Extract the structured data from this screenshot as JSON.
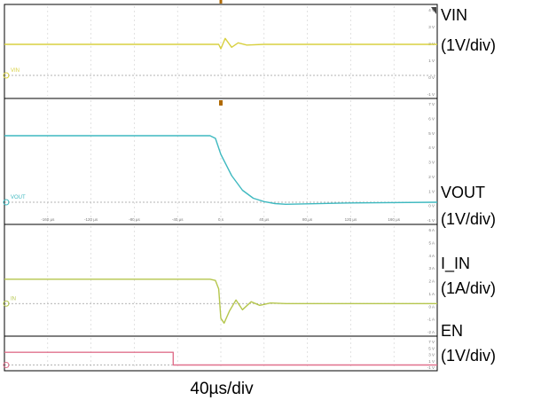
{
  "chart_data": [
    {
      "type": "line",
      "title": "",
      "xlabel": "40µs/div",
      "x_range_us": [
        -200,
        200
      ],
      "panels": [
        {
          "id": "vin",
          "name": "VIN",
          "scale": "(1V/div)",
          "channel_tag": "VIN",
          "color": "#d8d040",
          "y_ticks": [
            "4 V",
            "3 V",
            "2 V",
            "1 V",
            "0 V",
            "-1 V"
          ],
          "points": [
            [
              -200,
              2.1
            ],
            [
              -5,
              2.1
            ],
            [
              -2,
              2.1
            ],
            [
              0,
              1.8
            ],
            [
              4,
              2.5
            ],
            [
              10,
              1.9
            ],
            [
              16,
              2.2
            ],
            [
              24,
              2.05
            ],
            [
              40,
              2.1
            ],
            [
              200,
              2.1
            ]
          ]
        },
        {
          "id": "vout",
          "name": "VOUT",
          "scale": "(1V/div)",
          "channel_tag": "VOUT",
          "color": "#3fb9c0",
          "y_ticks": [
            "7 V",
            "6 V",
            "5 V",
            "4 V",
            "3 V",
            "2 V",
            "1 V",
            "0 V",
            "-1 V"
          ],
          "x_tick_labels": [
            "-160 µs",
            "-120 µs",
            "-80 µs",
            "-40 µs",
            "0 s",
            "40 µs",
            "80 µs",
            "120 µs",
            "160 µs"
          ],
          "points": [
            [
              -200,
              5
            ],
            [
              -10,
              5
            ],
            [
              -5,
              4.8
            ],
            [
              0,
              3.6
            ],
            [
              10,
              2.0
            ],
            [
              20,
              0.9
            ],
            [
              30,
              0.3
            ],
            [
              40,
              0.05
            ],
            [
              50,
              -0.1
            ],
            [
              60,
              -0.15
            ],
            [
              80,
              -0.12
            ],
            [
              120,
              -0.05
            ],
            [
              200,
              0
            ]
          ]
        },
        {
          "id": "iin",
          "name": "I_IN",
          "scale": "(1A/div)",
          "channel_tag": "IN",
          "color": "#b5c64d",
          "y_ticks": [
            "6 A",
            "5 A",
            "4 A",
            "3 A",
            "2 A",
            "1 A",
            "0 A",
            "-1 A",
            "-2 A"
          ],
          "points": [
            [
              -200,
              2.0
            ],
            [
              -10,
              2.0
            ],
            [
              -5,
              1.9
            ],
            [
              -2,
              1.2
            ],
            [
              0,
              -1.2
            ],
            [
              3,
              -1.6
            ],
            [
              8,
              -0.6
            ],
            [
              14,
              0.3
            ],
            [
              20,
              -0.5
            ],
            [
              28,
              0.15
            ],
            [
              36,
              -0.15
            ],
            [
              46,
              0.05
            ],
            [
              60,
              0
            ],
            [
              200,
              0
            ]
          ]
        },
        {
          "id": "en",
          "name": "EN",
          "scale": "(1V/div)",
          "channel_tag": "",
          "color": "#e0708c",
          "y_ticks": [
            "7 V",
            "5 V",
            "3 V",
            "1 V",
            "-1 V"
          ],
          "points": [
            [
              -200,
              3.3
            ],
            [
              -44,
              3.3
            ],
            [
              -44,
              0
            ],
            [
              200,
              0
            ]
          ]
        }
      ]
    }
  ]
}
